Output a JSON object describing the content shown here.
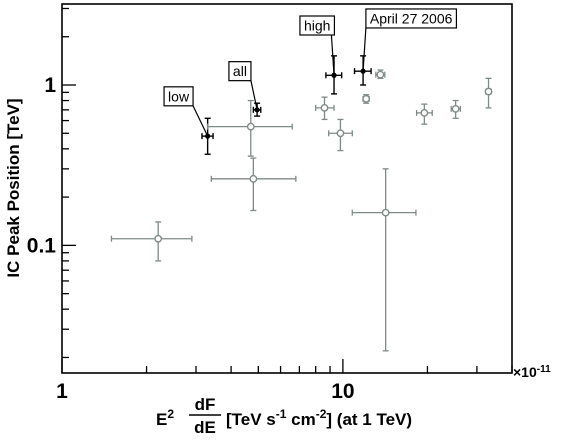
{
  "chart_data": {
    "type": "scatter",
    "xscale": "log",
    "yscale": "log",
    "xlim": [
      1,
      40
    ],
    "ylim": [
      0.016,
      3.2
    ],
    "x_tick_labels": [
      {
        "value": 1,
        "label": "1"
      },
      {
        "value": 10,
        "label": "10"
      }
    ],
    "y_tick_labels": [
      {
        "value": 0.1,
        "label": "0.1"
      },
      {
        "value": 1,
        "label": "1"
      }
    ],
    "x_multiplier": "×10",
    "x_multiplier_exp": "-11",
    "ylabel": "IC Peak Position [TeV]",
    "xlabel": {
      "prefix": "E",
      "prefix_sup": "2",
      "frac_num": "dF",
      "frac_den": "dE",
      "units_a": "[TeV s",
      "units_sup1": "-1",
      "units_b": " cm",
      "units_sup2": "-2",
      "units_c": "] (at 1 TeV)"
    },
    "series": [
      {
        "style": "filled-black",
        "color": "#000000",
        "points": [
          {
            "x": 3.3,
            "y": 0.48,
            "xlo": 3.15,
            "xhi": 3.45,
            "ylo": 0.37,
            "yhi": 0.62,
            "label": "low"
          },
          {
            "x": 4.95,
            "y": 0.7,
            "xlo": 4.8,
            "xhi": 5.1,
            "ylo": 0.64,
            "yhi": 0.77,
            "label": "all"
          },
          {
            "x": 9.3,
            "y": 1.15,
            "xlo": 8.7,
            "xhi": 9.9,
            "ylo": 0.88,
            "yhi": 1.52,
            "label": "high"
          },
          {
            "x": 11.8,
            "y": 1.22,
            "xlo": 11.0,
            "xhi": 12.6,
            "ylo": 1.0,
            "yhi": 1.52,
            "label": "April 27 2006"
          }
        ]
      },
      {
        "style": "open-grey",
        "color": "#7f8a87",
        "points": [
          {
            "x": 2.2,
            "y": 0.11,
            "xlo": 1.5,
            "xhi": 2.9,
            "ylo": 0.08,
            "yhi": 0.14
          },
          {
            "x": 4.7,
            "y": 0.55,
            "xlo": 3.3,
            "xhi": 6.6,
            "ylo": 0.36,
            "yhi": 0.8
          },
          {
            "x": 4.8,
            "y": 0.26,
            "xlo": 3.4,
            "xhi": 6.8,
            "ylo": 0.165,
            "yhi": 0.35
          },
          {
            "x": 8.6,
            "y": 0.72,
            "xlo": 8.0,
            "xhi": 9.3,
            "ylo": 0.61,
            "yhi": 0.84
          },
          {
            "x": 9.8,
            "y": 0.5,
            "xlo": 8.9,
            "xhi": 10.8,
            "ylo": 0.39,
            "yhi": 0.61
          },
          {
            "x": 12.1,
            "y": 0.82,
            "xlo": 11.8,
            "xhi": 12.4,
            "ylo": 0.77,
            "yhi": 0.87
          },
          {
            "x": 13.6,
            "y": 1.16,
            "xlo": 13.1,
            "xhi": 14.1,
            "ylo": 1.1,
            "yhi": 1.24
          },
          {
            "x": 14.2,
            "y": 0.16,
            "xlo": 10.8,
            "xhi": 18.2,
            "ylo": 0.022,
            "yhi": 0.3
          },
          {
            "x": 19.5,
            "y": 0.67,
            "xlo": 18.3,
            "xhi": 20.8,
            "ylo": 0.57,
            "yhi": 0.76
          },
          {
            "x": 25.2,
            "y": 0.71,
            "xlo": 24.3,
            "xhi": 26.2,
            "ylo": 0.62,
            "yhi": 0.8
          },
          {
            "x": 33.0,
            "y": 0.91,
            "xlo": 32.3,
            "xhi": 33.7,
            "ylo": 0.72,
            "yhi": 1.1
          }
        ]
      }
    ],
    "annotations": [
      {
        "text": "low",
        "point": {
          "x": 3.3,
          "y": 0.48
        },
        "box_anchor": {
          "x": 2.6,
          "y": 0.85
        }
      },
      {
        "text": "all",
        "point": {
          "x": 4.95,
          "y": 0.7
        },
        "box_anchor": {
          "x": 4.3,
          "y": 1.22
        }
      },
      {
        "text": "high",
        "point": {
          "x": 9.3,
          "y": 1.15
        },
        "box_anchor": {
          "x": 8.1,
          "y": 2.35
        }
      },
      {
        "text": "April 27 2006",
        "point": {
          "x": 11.8,
          "y": 1.22
        },
        "box_anchor": {
          "x": 17.5,
          "y": 2.6
        }
      }
    ]
  }
}
